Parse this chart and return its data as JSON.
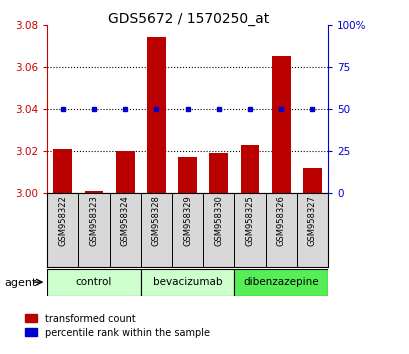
{
  "title": "GDS5672 / 1570250_at",
  "samples": [
    "GSM958322",
    "GSM958323",
    "GSM958324",
    "GSM958328",
    "GSM958329",
    "GSM958330",
    "GSM958325",
    "GSM958326",
    "GSM958327"
  ],
  "red_values": [
    3.021,
    3.001,
    3.02,
    3.074,
    3.017,
    3.019,
    3.023,
    3.065,
    3.012
  ],
  "blue_values": [
    3.04,
    3.04,
    3.04,
    3.04,
    3.04,
    3.04,
    3.04,
    3.04,
    3.04
  ],
  "ylim_left": [
    3.0,
    3.08
  ],
  "ylim_right": [
    0,
    100
  ],
  "yticks_left": [
    3.0,
    3.02,
    3.04,
    3.06,
    3.08
  ],
  "yticks_right": [
    0,
    25,
    50,
    75,
    100
  ],
  "bar_color": "#bb0000",
  "dot_color": "#0000cc",
  "bar_width": 0.6,
  "legend_red": "transformed count",
  "legend_blue": "percentile rank within the sample",
  "tick_color_left": "#cc0000",
  "tick_color_right": "#0000cc",
  "grid_yticks": [
    3.02,
    3.04,
    3.06
  ],
  "group_info": [
    {
      "label": "control",
      "start": 0,
      "end": 2,
      "color": "#ccffcc"
    },
    {
      "label": "bevacizumab",
      "start": 3,
      "end": 5,
      "color": "#ccffcc"
    },
    {
      "label": "dibenzazepine",
      "start": 6,
      "end": 8,
      "color": "#55ee55"
    }
  ]
}
